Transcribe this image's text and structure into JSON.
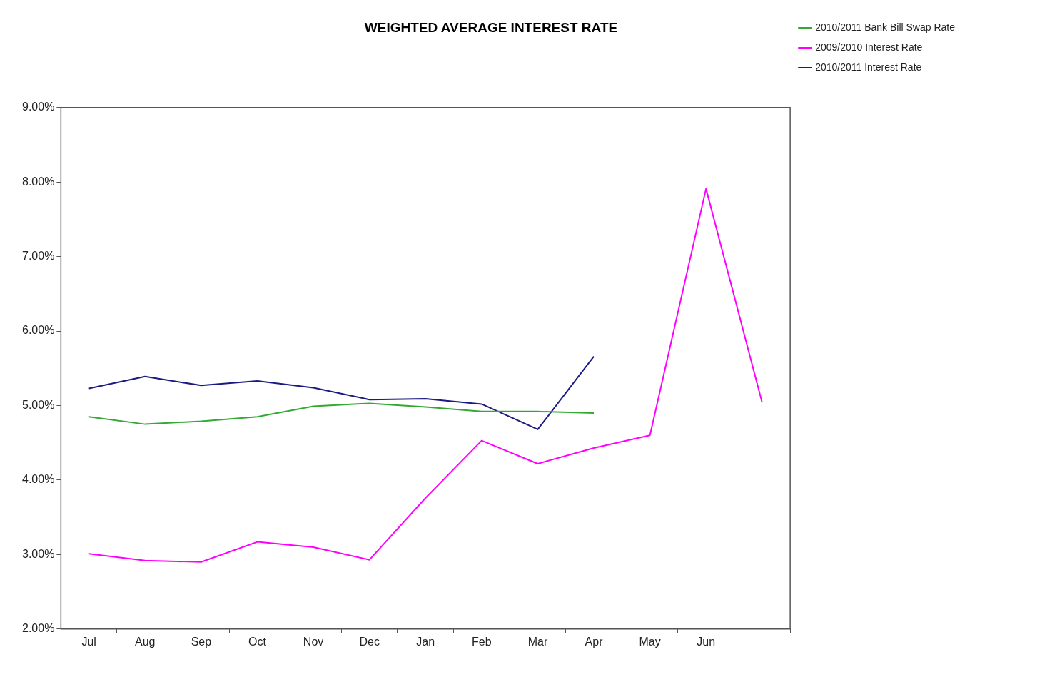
{
  "chart_data": {
    "type": "line",
    "title": "WEIGHTED AVERAGE INTEREST RATE",
    "categories": [
      "Jul",
      "Aug",
      "Sep",
      "Oct",
      "Nov",
      "Dec",
      "Jan",
      "Feb",
      "Mar",
      "Apr",
      "May",
      "Jun",
      null
    ],
    "series": [
      {
        "name": "2010/2011 Bank Bill Swap Rate",
        "color": "#33a933",
        "values": [
          4.85,
          4.75,
          4.79,
          4.85,
          4.99,
          5.03,
          4.98,
          4.92,
          4.92,
          4.9,
          null,
          null,
          null
        ]
      },
      {
        "name": "2009/2010 Interest Rate",
        "color": "#ff00ff",
        "values": [
          3.01,
          2.92,
          2.9,
          3.17,
          3.1,
          2.93,
          3.76,
          4.53,
          4.22,
          4.43,
          4.6,
          7.91,
          5.04
        ]
      },
      {
        "name": "2010/2011 Interest Rate",
        "color": "#1a1a80",
        "values": [
          5.23,
          5.39,
          5.27,
          5.33,
          5.24,
          5.08,
          5.09,
          5.02,
          4.68,
          5.66,
          null,
          null,
          null
        ]
      }
    ],
    "ylim": [
      2,
      9
    ],
    "yticks": [
      {
        "value": 2,
        "label": "2.00%"
      },
      {
        "value": 3,
        "label": "3.00%"
      },
      {
        "value": 4,
        "label": "4.00%"
      },
      {
        "value": 5,
        "label": "5.00%"
      },
      {
        "value": 6,
        "label": "6.00%"
      },
      {
        "value": 7,
        "label": "7.00%"
      },
      {
        "value": 8,
        "label": "8.00%"
      },
      {
        "value": 9,
        "label": "9.00%"
      }
    ],
    "grid": false,
    "legend": "right",
    "marker": "none",
    "line_style": "solid"
  }
}
